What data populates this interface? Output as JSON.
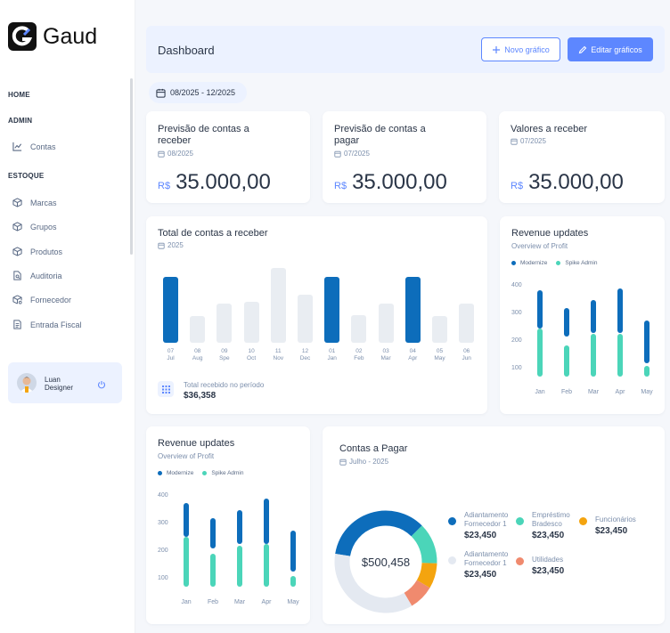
{
  "app": {
    "logo_text": "Gaud"
  },
  "sidebar": {
    "sections": [
      {
        "label": "HOME"
      },
      {
        "label": "ADMIN"
      },
      {
        "label": "ESTOQUE"
      }
    ],
    "items": [
      {
        "label": "Contas",
        "icon": "chart-line-icon"
      },
      {
        "label": "Marcas",
        "icon": "cube-icon"
      },
      {
        "label": "Grupos",
        "icon": "cube-icon"
      },
      {
        "label": "Produtos",
        "icon": "cube-icon"
      },
      {
        "label": "Auditoria",
        "icon": "file-search-icon"
      },
      {
        "label": "Fornecedor",
        "icon": "cube-settings-icon"
      },
      {
        "label": "Entrada Fiscal",
        "icon": "file-text-icon"
      }
    ],
    "user": {
      "name_line1": "Luan",
      "name_line2": "Designer"
    }
  },
  "header": {
    "title": "Dashboard",
    "new_chart_label": "Novo gráfico",
    "edit_charts_label": "Editar gráficos"
  },
  "date_range": "08/2025 - 12/2025",
  "kpis": [
    {
      "title_line1": "Previsão de contas a",
      "title_line2": "receber",
      "date": "08/2025",
      "currency": "R$",
      "value": "35.000,00"
    },
    {
      "title_line1": "Previsão de contas a",
      "title_line2": "pagar",
      "date": "07/2025",
      "currency": "R$",
      "value": "35.000,00"
    },
    {
      "title_line1": "Valores a receber",
      "title_line2": "",
      "date": "07/2025",
      "currency": "R$",
      "value": "35.000,00"
    }
  ],
  "receivables": {
    "title": "Total de contas a receber",
    "year": "2025",
    "total_label": "Total recebido no período",
    "total_value": "$36,358"
  },
  "revenue1": {
    "title": "Revenue updates",
    "subtitle": "Overview of Profit"
  },
  "revenue2": {
    "title": "Revenue updates",
    "subtitle": "Overview of Profit"
  },
  "payables": {
    "title": "Contas a Pagar",
    "date": "Julho - 2025",
    "center_value": "$500,458",
    "legend": [
      {
        "line1": "Adiantamento",
        "line2": "Fornecedor 1",
        "amount": "$23,450",
        "color": "#0d6dbb"
      },
      {
        "line1": "Empréstimo",
        "line2": "Bradesco",
        "amount": "$23,450",
        "color": "#4bd5b9"
      },
      {
        "line1": "Funcionários",
        "line2": "",
        "amount": "$23,450",
        "color": "#f4a40f"
      },
      {
        "line1": "Adiantamento",
        "line2": "Fornecedor 1",
        "amount": "$23,450",
        "color": "#e4e9f1"
      },
      {
        "line1": "Utilidades",
        "line2": "",
        "amount": "$23,450",
        "color": "#f08a6e"
      }
    ]
  },
  "colors": {
    "primary": "#5d87ff",
    "dark_blue": "#0d6dbb",
    "teal": "#4bd5b9",
    "light": "#ecf2ff",
    "gray_bar": "#e9edf2"
  },
  "chart_data": [
    {
      "type": "bar",
      "title": "Total de contas a receber",
      "categories": [
        "07 Jul",
        "08 Aug",
        "09 Spe",
        "10 Oct",
        "11 Nov",
        "12 Dec",
        "01 Jan",
        "02 Feb",
        "03 Mar",
        "04 Apr",
        "05 May",
        "06 Jun"
      ],
      "tick_top": [
        "07",
        "08",
        "09",
        "10",
        "11",
        "12",
        "01",
        "02",
        "03",
        "04",
        "05",
        "06"
      ],
      "tick_bottom": [
        "Jul",
        "Aug",
        "Spe",
        "Oct",
        "Nov",
        "Dec",
        "Jan",
        "Feb",
        "Mar",
        "Apr",
        "May",
        "Jun"
      ],
      "values": [
        76,
        31,
        45,
        47,
        86,
        55,
        76,
        32,
        45,
        76,
        31,
        45
      ],
      "highlighted": [
        true,
        false,
        false,
        false,
        false,
        false,
        true,
        false,
        false,
        true,
        false,
        false
      ],
      "ylim": [
        0,
        100
      ]
    },
    {
      "type": "bar",
      "title": "Revenue updates",
      "categories": [
        "Jan",
        "Feb",
        "Mar",
        "Apr",
        "May"
      ],
      "y_ticks": [
        400,
        300,
        200,
        100
      ],
      "ylim": [
        70,
        420
      ],
      "series": [
        {
          "name": "Modernize",
          "ranges": [
            [
              245,
              385
            ],
            [
              215,
              320
            ],
            [
              230,
              350
            ],
            [
              230,
              390
            ],
            [
              120,
              275
            ]
          ]
        },
        {
          "name": "Spike Admin",
          "ranges": [
            [
              70,
              245
            ],
            [
              70,
              185
            ],
            [
              70,
              225
            ],
            [
              70,
              225
            ],
            [
              70,
              110
            ]
          ]
        }
      ]
    },
    {
      "type": "bar",
      "title": "Revenue updates",
      "categories": [
        "Jan",
        "Feb",
        "Mar",
        "Apr",
        "May"
      ],
      "y_ticks": [
        400,
        300,
        200,
        100
      ],
      "ylim": [
        70,
        420
      ],
      "series": [
        {
          "name": "Modernize",
          "ranges": [
            [
              250,
              375
            ],
            [
              210,
              320
            ],
            [
              225,
              350
            ],
            [
              225,
              390
            ],
            [
              125,
              275
            ]
          ]
        },
        {
          "name": "Spike Admin",
          "ranges": [
            [
              70,
              250
            ],
            [
              70,
              190
            ],
            [
              70,
              220
            ],
            [
              70,
              225
            ],
            [
              70,
              110
            ]
          ]
        }
      ]
    },
    {
      "type": "pie",
      "title": "Contas a Pagar",
      "labels": [
        "Adiantamento Fornecedor 1",
        "Empréstimo Bradesco",
        "Funcionários",
        "Adiantamento Fornecedor 1",
        "Utilidades"
      ],
      "values": [
        35,
        13,
        8,
        36,
        8
      ]
    }
  ]
}
